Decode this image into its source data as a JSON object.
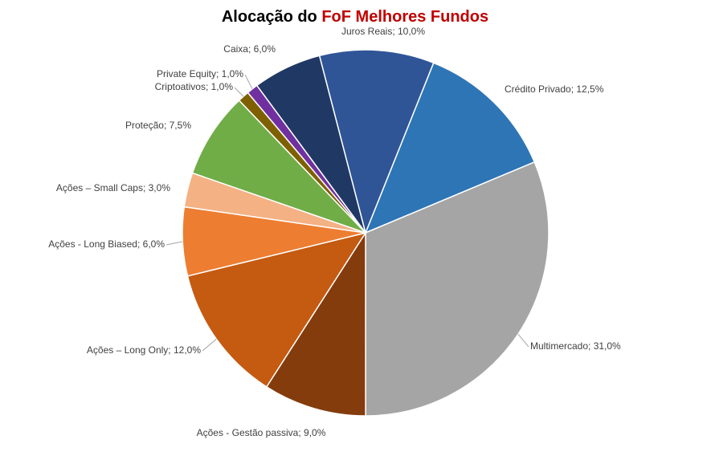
{
  "chart_data": {
    "type": "pie",
    "title": "Alocação do",
    "title_highlight": "FoF Melhores Fundos",
    "values": [
      12.5,
      31.0,
      9.0,
      12.0,
      6.0,
      3.0,
      7.5,
      1.0,
      1.0,
      6.0,
      10.0
    ],
    "value_labels": [
      "Crédito Privado; 12,5%",
      "Multimercado; 31,0%",
      "Ações - Gestão passiva; 9,0%",
      "Ações – Long Only; 12,0%",
      "Ações - Long Biased; 6,0%",
      "Ações – Small Caps; 3,0%",
      "Proteção; 7,5%",
      "Criptoativos; 1,0%",
      "Private Equity; 1,0%",
      "Caixa; 6,0%",
      "Juros Reais; 10,0%"
    ],
    "colors": [
      "#2e75b6",
      "#a5a5a5",
      "#843c0c",
      "#c55a11",
      "#ed7d31",
      "#f4b183",
      "#70ad47",
      "#7f6000",
      "#7030a0",
      "#203864",
      "#2f5597"
    ]
  }
}
